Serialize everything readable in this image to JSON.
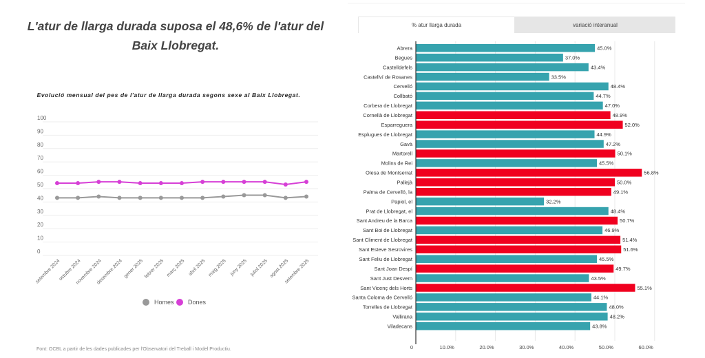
{
  "headline": "L'atur de llarga durada suposa el 48,6% de l'atur del Baix Llobregat.",
  "source": "Font: OCBL a partir de les dades publicades per l'Observatori del Treball i Model Productiu.",
  "tabs": [
    {
      "label": "% atur llarga durada",
      "active": true
    },
    {
      "label": "variació interanual",
      "active": false
    }
  ],
  "colors": {
    "homes": "#999999",
    "dones": "#d63fd6",
    "above": "#f0001f",
    "below": "#36a3ae"
  },
  "chart_data": [
    {
      "type": "line",
      "title": "Evolució mensual del pes de l'atur de llarga durada segons sexe al Baix Llobregat.",
      "categories": [
        "setembre 2024",
        "octubre 2024",
        "novembre 2024",
        "desembre 2024",
        "gener 2025",
        "febrer 2025",
        "març 2025",
        "abril 2025",
        "maig 2025",
        "juny 2025",
        "juliol 2025",
        "agost 2025",
        "setembre 2025"
      ],
      "yticks": [
        0,
        10,
        20,
        30,
        40,
        50,
        60,
        70,
        80,
        90,
        100
      ],
      "ylim": [
        0,
        100
      ],
      "grid": true,
      "legend_position": "bottom",
      "series": [
        {
          "name": "Homes",
          "color": "#999999",
          "values": [
            40,
            40,
            41,
            40,
            40,
            40,
            40,
            40,
            41,
            42,
            42,
            40,
            41
          ]
        },
        {
          "name": "Dones",
          "color": "#d63fd6",
          "values": [
            51,
            51,
            52,
            52,
            51,
            51,
            51,
            52,
            52,
            52,
            52,
            50,
            52
          ]
        }
      ]
    },
    {
      "type": "bar",
      "orientation": "horizontal",
      "xlim": [
        0,
        60
      ],
      "xticks": [
        "0",
        "10.0%",
        "20.0%",
        "30.0%",
        "40.0%",
        "50.0%",
        "60.0%"
      ],
      "xtick_values": [
        0,
        10,
        20,
        30,
        40,
        50,
        60
      ],
      "categories": [
        "Abrera",
        "Begues",
        "Castelldefels",
        "Castellví de Rosanes",
        "Cervelló",
        "Collbató",
        "Corbera de Llobregat",
        "Cornellà de Llobregat",
        "Esparreguera",
        "Esplugues de Llobregat",
        "Gavà",
        "Martorell",
        "Molins de Rei",
        "Olesa de Montserrat",
        "Pallejà",
        "Palma de Cervelló, la",
        "Papiol, el",
        "Prat de Llobregat, el",
        "Sant Andreu de la Barca",
        "Sant Boi de Llobregat",
        "Sant Climent de Llobregat",
        "Sant Esteve Sesrovires",
        "Sant Feliu de Llobregat",
        "Sant Joan Despí",
        "Sant Just Desvern",
        "Sant Vicenç dels Horts",
        "Santa Coloma de Cervelló",
        "Torrelles de Llobregat",
        "Vallirana",
        "Viladecans"
      ],
      "values": [
        45.0,
        37.0,
        43.4,
        33.5,
        48.4,
        44.7,
        47.0,
        48.9,
        52.0,
        44.9,
        47.2,
        50.1,
        45.5,
        56.8,
        50.0,
        49.1,
        32.2,
        48.4,
        50.7,
        46.9,
        51.4,
        51.6,
        45.5,
        49.7,
        43.5,
        55.1,
        44.1,
        48.0,
        48.2,
        43.8
      ],
      "labels": [
        "45.0%",
        "37.0%",
        "43.4%",
        "33.5%",
        "48.4%",
        "44.7%",
        "47.0%",
        "48.9%",
        "52.0%",
        "44.9%",
        "47.2%",
        "50.1%",
        "45.5%",
        "56.8%",
        "50.0%",
        "49.1%",
        "32.2%",
        "48.4%",
        "50.7%",
        "46.9%",
        "51.4%",
        "51.6%",
        "45.5%",
        "49.7%",
        "43.5%",
        "55.1%",
        "44.1%",
        "48.0%",
        "48.2%",
        "43.8%"
      ],
      "threshold": 48.6
    }
  ]
}
